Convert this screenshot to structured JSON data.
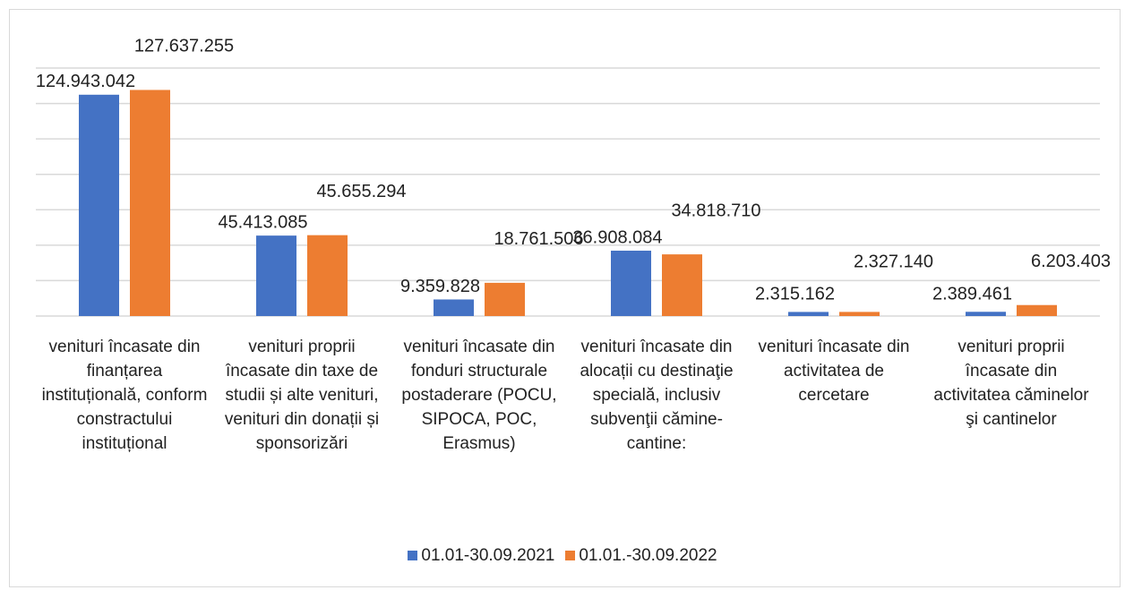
{
  "chart_data": {
    "type": "bar",
    "categories": [
      "venituri încasate din finanțarea instituțională, conform constractului instituțional",
      "venituri proprii încasate din taxe de studii și alte venituri, venituri din donații și sponsorizări",
      "venituri încasate din fonduri structurale postaderare (POCU, SIPOCA, POC, Erasmus)",
      "venituri încasate din alocații cu destinaţie specială, inclusiv subvenţii cămine-cantine:",
      "venituri încasate din activitatea de cercetare",
      "venituri proprii încasate din activitatea căminelor şi cantinelor"
    ],
    "series": [
      {
        "name": "01.01-30.09.2021",
        "color": "#4472c4",
        "values": [
          124943042,
          45413085,
          9359828,
          36908084,
          2315162,
          2389461
        ],
        "value_labels": [
          "124.943.042",
          "45.413.085",
          "9.359.828",
          "36.908.084",
          "2.315.162",
          "2.389.461"
        ]
      },
      {
        "name": "01.01.-30.09.2022",
        "color": "#ed7d31",
        "values": [
          127637255,
          45655294,
          18761506,
          34818710,
          2327140,
          6203403
        ],
        "value_labels": [
          "127.637.255",
          "45.655.294",
          "18.761.506",
          "34.818.710",
          "2.327.140",
          "6.203.403"
        ]
      }
    ],
    "ylim": [
      0,
      140000000
    ],
    "yticks": [
      0,
      20000000,
      40000000,
      60000000,
      80000000,
      100000000,
      120000000,
      140000000
    ],
    "grid": true,
    "legend": "bottom"
  }
}
